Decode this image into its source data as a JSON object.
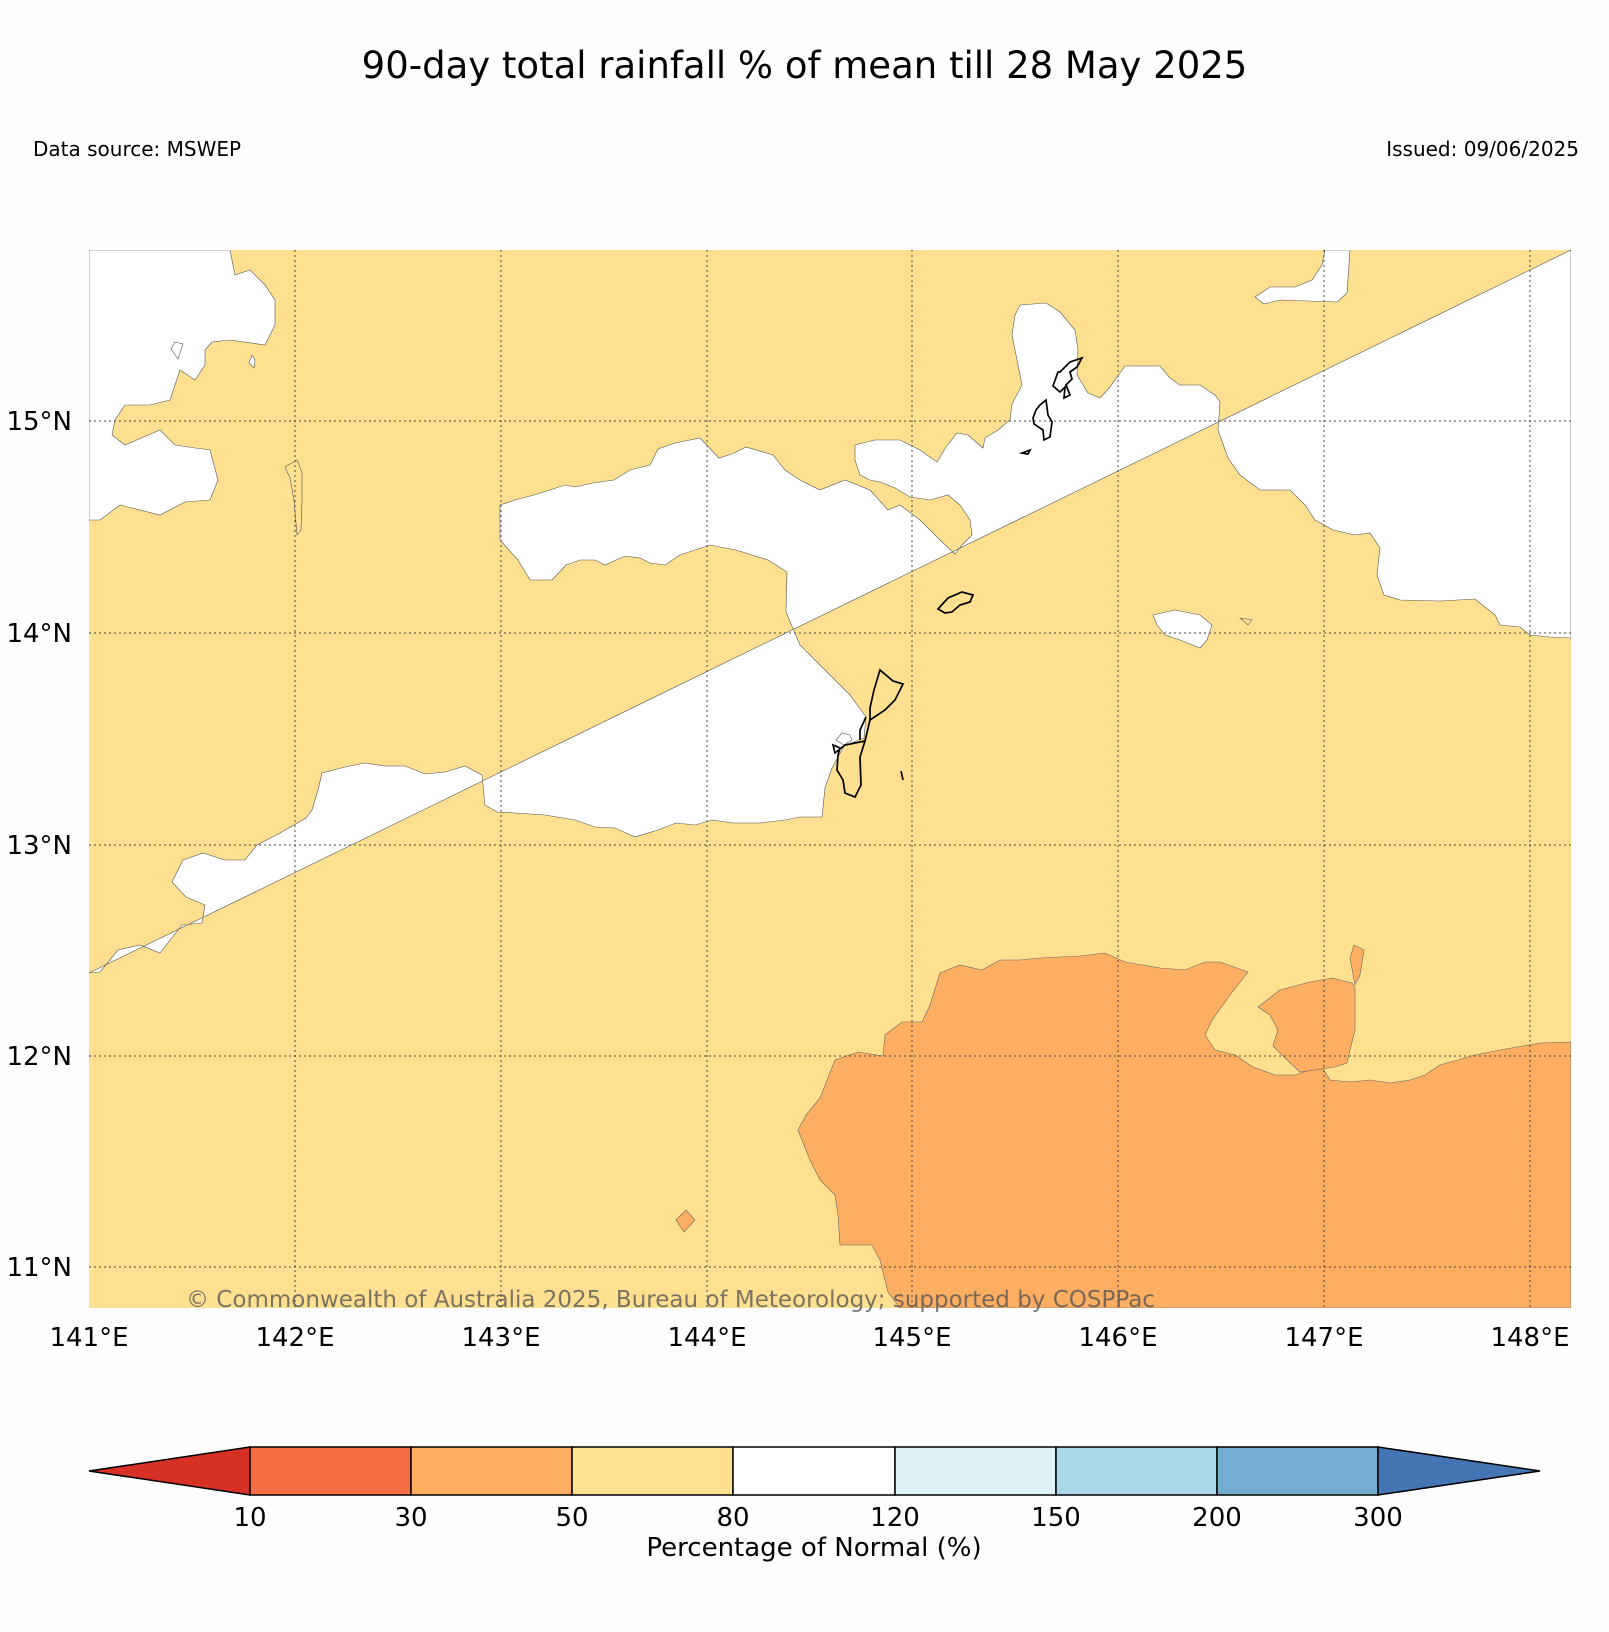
{
  "title": "90-day total rainfall % of mean till 28 May 2025",
  "data_source": "Data source: MSWEP",
  "issued": "Issued: 09/06/2025",
  "copyright": "© Commonwealth of Australia 2025, Bureau of Meteorology; supported by COSPPac",
  "map": {
    "lon_labels": [
      "141°E",
      "142°E",
      "143°E",
      "144°E",
      "145°E",
      "146°E",
      "147°E",
      "148°E"
    ],
    "lat_labels": [
      "15°N",
      "14°N",
      "13°N",
      "12°N",
      "11°N"
    ]
  },
  "colorbar": {
    "label": "Percentage of Normal (%)",
    "ticks": [
      "10",
      "30",
      "50",
      "80",
      "120",
      "150",
      "200",
      "300"
    ],
    "colors": {
      "lt10": "#d73027",
      "10-30": "#f46d43",
      "30-50": "#fdae61",
      "50-80": "#fee090",
      "80-120": "#ffffff",
      "120-150": "#e0f3f8",
      "150-200": "#abd9e9",
      "200-300": "#74add1",
      "gt300": "#4575b4"
    }
  }
}
